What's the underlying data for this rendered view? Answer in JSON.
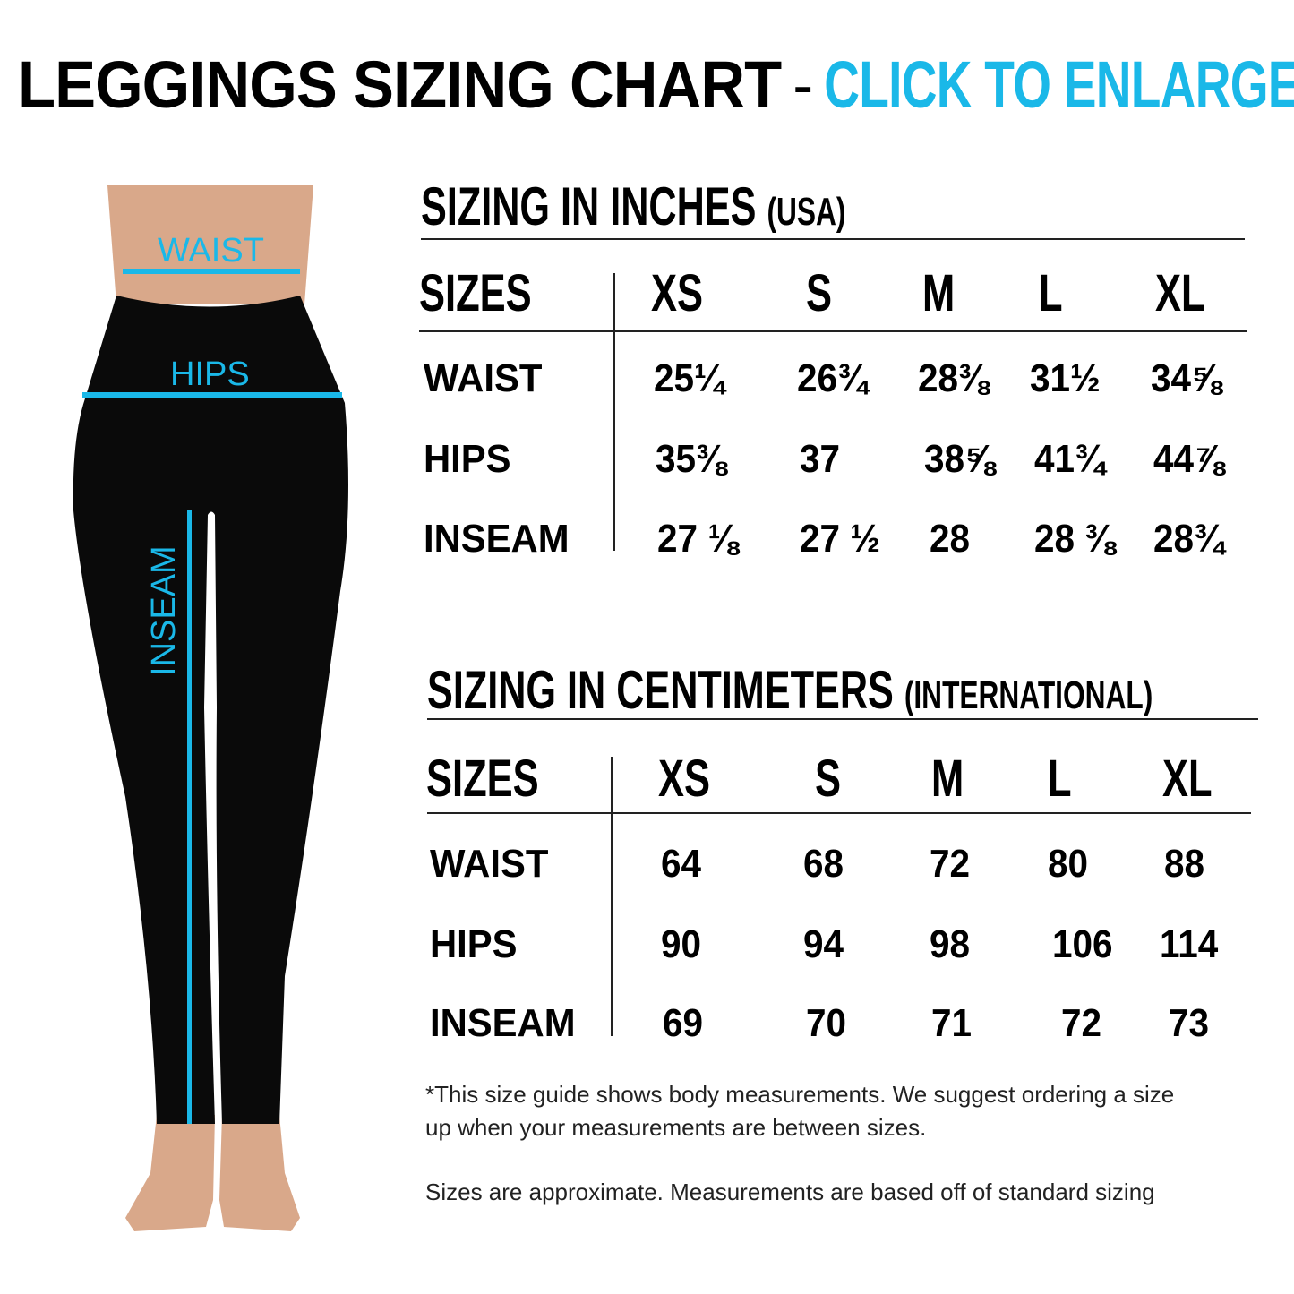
{
  "title": {
    "main": "LEGGINGS SIZING CHART",
    "separator": "-",
    "link": "CLICK TO ENLARGE"
  },
  "figure": {
    "labels": {
      "waist": "WAIST",
      "hips": "HIPS",
      "inseam": "INSEAM"
    },
    "accent_color": "#1ab8e8"
  },
  "inches": {
    "heading": "SIZING IN INCHES",
    "heading_sub": "(USA)",
    "sizes_label": "SIZES",
    "sizes": [
      "XS",
      "S",
      "M",
      "L",
      "XL"
    ],
    "rows": [
      {
        "label": "WAIST",
        "values": [
          "25¼",
          "26¾",
          "28⅜",
          "31½",
          "34⅝"
        ]
      },
      {
        "label": "HIPS",
        "values": [
          "35⅜",
          "37",
          "38⅝",
          "41¾",
          "44⅞"
        ]
      },
      {
        "label": "INSEAM",
        "values": [
          "27 ⅛",
          "27 ½",
          "28",
          "28 ⅜",
          "28¾"
        ]
      }
    ]
  },
  "cm": {
    "heading": "SIZING IN CENTIMETERS",
    "heading_sub": "(INTERNATIONAL)",
    "sizes_label": "SIZES",
    "sizes": [
      "XS",
      "S",
      "M",
      "L",
      "XL"
    ],
    "rows": [
      {
        "label": "WAIST",
        "values": [
          "64",
          "68",
          "72",
          "80",
          "88"
        ]
      },
      {
        "label": "HIPS",
        "values": [
          "90",
          "94",
          "98",
          "106",
          "114"
        ]
      },
      {
        "label": "INSEAM",
        "values": [
          "69",
          "70",
          "71",
          "72",
          "73"
        ]
      }
    ]
  },
  "notes": {
    "line1": "*This size guide shows body measurements. We suggest ordering a size",
    "line2": "up when your measurements are between sizes.",
    "line3": "Sizes are approximate. Measurements are based off of standard sizing"
  }
}
